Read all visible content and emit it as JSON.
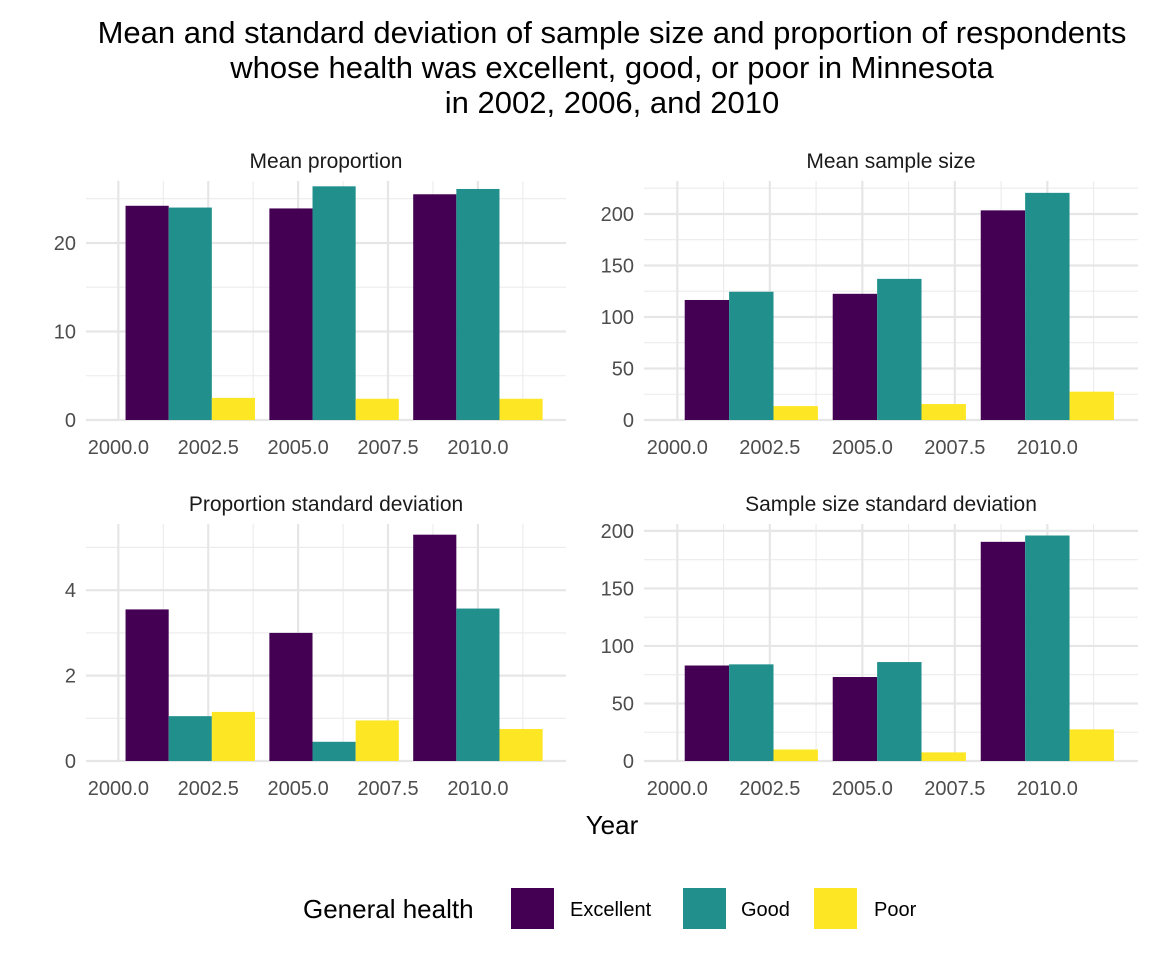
{
  "chart_data": {
    "type": "bar",
    "title_lines": [
      "Mean and standard deviation of sample size and proportion of respondents",
      "whose health was excellent, good, or poor in Minnesota",
      "in 2002, 2006, and 2010"
    ],
    "xlabel": "Year",
    "x_ticks": [
      "2000.0",
      "2002.5",
      "2005.0",
      "2007.5",
      "2010.0"
    ],
    "legend": {
      "title": "General health",
      "position": "bottom",
      "items": [
        {
          "label": "Excellent",
          "color": "#440154"
        },
        {
          "label": "Good",
          "color": "#21908C"
        },
        {
          "label": "Poor",
          "color": "#FDE725"
        }
      ]
    },
    "grid": true,
    "years": [
      2002,
      2006,
      2010
    ],
    "panels": [
      {
        "title": "Mean proportion",
        "y_ticks": [
          "0",
          "10",
          "20"
        ],
        "ylim": [
          0,
          27
        ],
        "series": [
          {
            "name": "Excellent",
            "values": [
              24.2,
              23.9,
              25.5
            ]
          },
          {
            "name": "Good",
            "values": [
              24.0,
              26.4,
              26.1
            ]
          },
          {
            "name": "Poor",
            "values": [
              2.5,
              2.4,
              2.4
            ]
          }
        ]
      },
      {
        "title": "Mean sample size",
        "y_ticks": [
          "0",
          "50",
          "100",
          "150",
          "200"
        ],
        "ylim": [
          0,
          232
        ],
        "series": [
          {
            "name": "Excellent",
            "values": [
              116.5,
              122.5,
              203.5
            ]
          },
          {
            "name": "Good",
            "values": [
              124.5,
              137.0,
              220.5
            ]
          },
          {
            "name": "Poor",
            "values": [
              13.5,
              15.5,
              27.5
            ]
          }
        ]
      },
      {
        "title": "Proportion standard deviation",
        "y_ticks": [
          "0",
          "2",
          "4"
        ],
        "ylim": [
          0,
          5.55
        ],
        "series": [
          {
            "name": "Excellent",
            "values": [
              3.55,
              3.0,
              5.3
            ]
          },
          {
            "name": "Good",
            "values": [
              1.05,
              0.45,
              3.57
            ]
          },
          {
            "name": "Poor",
            "values": [
              1.15,
              0.95,
              0.75
            ]
          }
        ]
      },
      {
        "title": "Sample size standard deviation",
        "y_ticks": [
          "0",
          "50",
          "100",
          "150",
          "200"
        ],
        "ylim": [
          0,
          206
        ],
        "series": [
          {
            "name": "Excellent",
            "values": [
              83.0,
              73.0,
              190.5
            ]
          },
          {
            "name": "Good",
            "values": [
              84.0,
              86.0,
              196.0
            ]
          },
          {
            "name": "Poor",
            "values": [
              10.0,
              7.5,
              27.5
            ]
          }
        ]
      }
    ]
  }
}
